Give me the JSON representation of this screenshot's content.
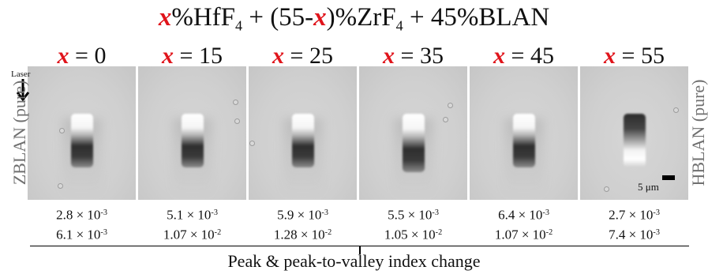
{
  "title": {
    "var": "x",
    "p1": "%HfF",
    "sub1": "4",
    "p2": " + (55-",
    "p3": ")%ZrF",
    "sub2": "4",
    "p4": " + 45%BLAN"
  },
  "columns": [
    {
      "var": "x",
      "label": " = 0",
      "peak": "2.8 × 10",
      "peak_exp": "-3",
      "pv": "6.1 × 10",
      "pv_exp": "-3"
    },
    {
      "var": "x",
      "label": " = 15",
      "peak": "5.1 × 10",
      "peak_exp": "-3",
      "pv": "1.07 × 10",
      "pv_exp": "-2"
    },
    {
      "var": "x",
      "label": " = 25",
      "peak": "5.9 × 10",
      "peak_exp": "-3",
      "pv": "1.28 × 10",
      "pv_exp": "-2"
    },
    {
      "var": "x",
      "label": " = 35",
      "peak": "5.5 × 10",
      "peak_exp": "-3",
      "pv": "1.05 × 10",
      "pv_exp": "-2"
    },
    {
      "var": "x",
      "label": " = 45",
      "peak": "6.4 × 10",
      "peak_exp": "-3",
      "pv": "1.07 × 10",
      "pv_exp": "-2"
    },
    {
      "var": "x",
      "label": " = 55",
      "peak": "2.7 × 10",
      "peak_exp": "-3",
      "pv": "7.4 × 10",
      "pv_exp": "-3"
    }
  ],
  "laser_label": "Laser",
  "left_side_label": "ZBLAN (pure)",
  "right_side_label": "HBLAN (pure)",
  "scale_label": "5 μm",
  "bottom_label": "Peak & peak-to-valley index change",
  "accent_color": "#e0141b"
}
